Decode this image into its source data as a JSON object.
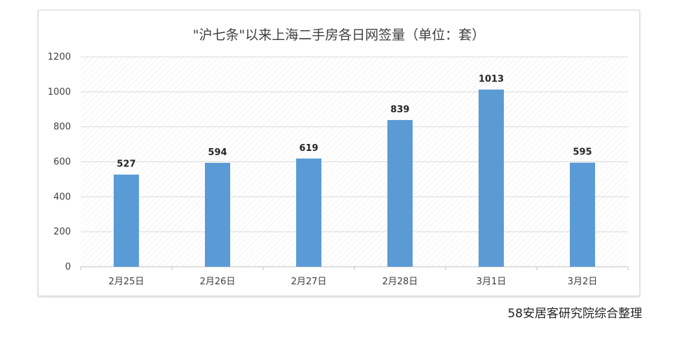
{
  "chart_data": {
    "type": "bar",
    "title": "\"沪七条\"以来上海二手房各日网签量（单位：套）",
    "categories": [
      "2月25日",
      "2月26日",
      "2月27日",
      "2月28日",
      "3月1日",
      "3月2日"
    ],
    "values": [
      527,
      594,
      619,
      839,
      1013,
      595
    ],
    "data_labels": [
      "527",
      "594",
      "619",
      "839",
      "1013",
      "595"
    ],
    "ylim": [
      0,
      1200
    ],
    "yticks": [
      0,
      200,
      400,
      600,
      800,
      1000,
      1200
    ],
    "ytick_labels": [
      "0",
      "200",
      "400",
      "600",
      "800",
      "1000",
      "1200"
    ],
    "grid": true,
    "legend": "none",
    "bar_color": "#5b9bd5",
    "grid_color": "#d9d9d9",
    "plot_pattern_color": "#e6e6e6"
  },
  "footer": {
    "source": "58安居客研究院综合整理"
  }
}
